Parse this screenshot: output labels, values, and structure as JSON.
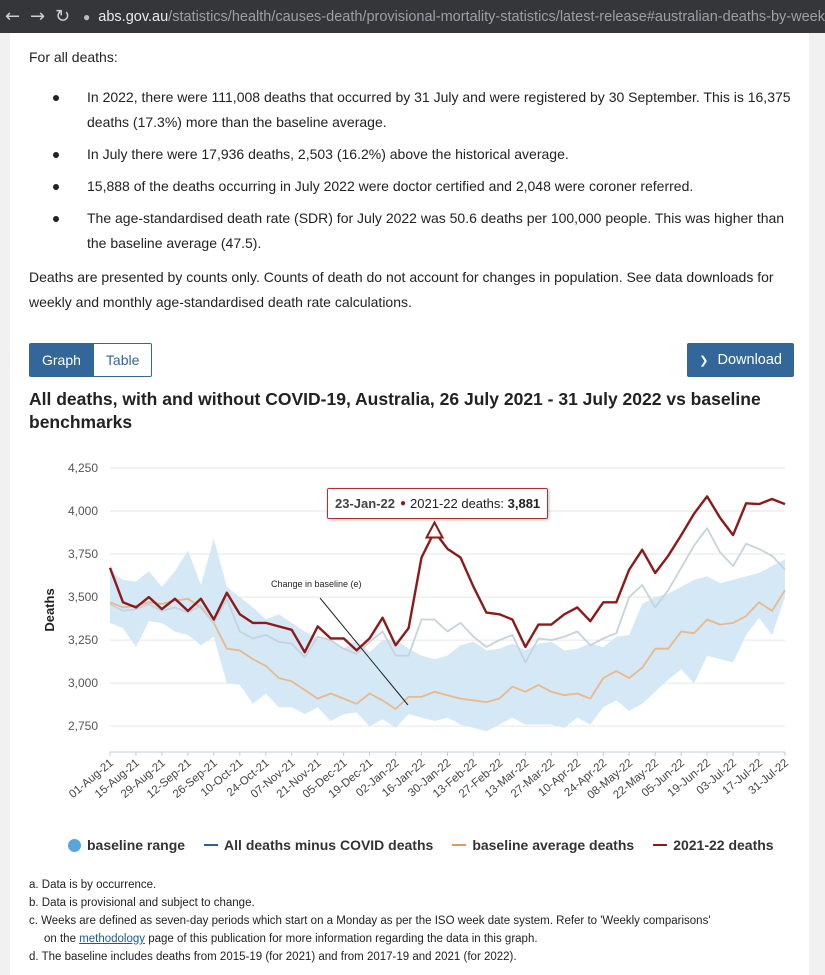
{
  "browser": {
    "host": "abs.gov.au",
    "path": "/statistics/health/causes-death/provisional-mortality-statistics/latest-release#australian-deaths-by-week"
  },
  "intro": "For all deaths:",
  "bullets": [
    "In 2022, there were 111,008 deaths that occurred by 31 July and were registered by 30 September. This is 16,375 deaths (17.3%) more than the baseline average.",
    "In July there were 17,936 deaths, 2,503 (16.2%) above the historical average.",
    "15,888 of the deaths occurring in July 2022 were doctor certified and 2,048 were coroner referred.",
    "The age-standardised death rate (SDR) for July 2022 was 50.6 deaths per 100,000 people. This was higher than the baseline average (47.5)."
  ],
  "note_paragraph": "Deaths are presented by counts only. Counts of death do not account for changes in population. See data downloads for weekly and monthly age-standardised death rate calculations.",
  "toggle": {
    "graph": "Graph",
    "table": "Table"
  },
  "download_label": "Download",
  "tooltip": {
    "date": "23-Jan-22",
    "series": "2021-22 deaths:",
    "value": "3,881"
  },
  "annotation": "Change in baseline (e)",
  "footnotes": {
    "a": "a. Data is by occurrence.",
    "b": "b. Data is provisional and subject to change.",
    "c_pre": "c. Weeks are defined as seven-day periods which start on a Monday as per the ISO week date system. Refer to 'Weekly comparisons' on the ",
    "c_link": "methodology",
    "c_post": " page of this publication for more information regarding the data in this graph.",
    "d": "d. The baseline includes deaths from 2015-19 (for 2021) and from 2017-19 and 2021 (for 2022)."
  },
  "colors": {
    "deaths": "#8b1a1a",
    "minus_covid": "#c5d3dd",
    "baseline_avg": "#e9b98a",
    "baseline_range": "#cfe6f5",
    "legend_minus_covid": "#2f5f8f",
    "legend_baseline_avg": "#e29a55",
    "accent": "#336699"
  },
  "chart_data": {
    "type": "line",
    "title": "All deaths, with and without COVID-19, Australia, 26 July 2021 - 31 July 2022 vs baseline benchmarks",
    "ylabel": "Deaths",
    "xlabel": "",
    "ylim": [
      2600,
      4250
    ],
    "yticks": [
      2750,
      3000,
      3250,
      3500,
      3750,
      4000,
      4250
    ],
    "ytick_labels": [
      "2,750",
      "3,000",
      "3,250",
      "3,500",
      "3,750",
      "4,000",
      "4,250"
    ],
    "x_tick_labels": [
      "01-Aug-21",
      "15-Aug-21",
      "29-Aug-21",
      "12-Sep-21",
      "26-Sep-21",
      "10-Oct-21",
      "24-Oct-21",
      "07-Nov-21",
      "21-Nov-21",
      "05-Dec-21",
      "19-Dec-21",
      "02-Jan-22",
      "16-Jan-22",
      "30-Jan-22",
      "13-Feb-22",
      "27-Feb-22",
      "13-Mar-22",
      "27-Mar-22",
      "10-Apr-22",
      "24-Apr-22",
      "08-May-22",
      "22-May-22",
      "05-Jun-22",
      "19-Jun-22",
      "03-Jul-22",
      "17-Jul-22",
      "31-Jul-22"
    ],
    "grid": true,
    "legend": "bottom",
    "legend_items": [
      "baseline range",
      "All deaths minus COVID deaths",
      "baseline average deaths",
      "2021-22 deaths"
    ],
    "series": [
      {
        "name": "2021-22 deaths",
        "values": [
          3670,
          3470,
          3440,
          3500,
          3430,
          3490,
          3420,
          3490,
          3370,
          3525,
          3400,
          3350,
          3350,
          3330,
          3310,
          3180,
          3330,
          3260,
          3260,
          3190,
          3260,
          3380,
          3220,
          3320,
          3730,
          3881,
          3780,
          3730,
          3560,
          3410,
          3400,
          3370,
          3210,
          3340,
          3340,
          3400,
          3440,
          3360,
          3470,
          3470,
          3660,
          3775,
          3640,
          3740,
          3860,
          3985,
          4085,
          3960,
          3860,
          4045,
          4040,
          4070,
          4040
        ]
      },
      {
        "name": "All deaths minus COVID deaths",
        "values": [
          3460,
          3420,
          3430,
          3460,
          3420,
          3440,
          3410,
          3450,
          3350,
          3490,
          3300,
          3260,
          3280,
          3240,
          3230,
          3150,
          3270,
          3250,
          3200,
          3170,
          3240,
          3300,
          3160,
          3160,
          3370,
          3370,
          3300,
          3350,
          3270,
          3210,
          3250,
          3280,
          3120,
          3260,
          3250,
          3270,
          3300,
          3220,
          3260,
          3290,
          3500,
          3570,
          3440,
          3540,
          3670,
          3800,
          3900,
          3760,
          3680,
          3810,
          3780,
          3740,
          3660
        ]
      },
      {
        "name": "baseline average deaths",
        "values": [
          3470,
          3440,
          3450,
          3470,
          3460,
          3480,
          3490,
          3440,
          3350,
          3200,
          3190,
          3140,
          3100,
          3030,
          3010,
          2960,
          2910,
          2940,
          2910,
          2880,
          2940,
          2900,
          2850,
          2920,
          2920,
          2950,
          2930,
          2910,
          2900,
          2890,
          2910,
          2980,
          2950,
          2990,
          2950,
          2930,
          2940,
          2910,
          3030,
          3070,
          3030,
          3090,
          3200,
          3200,
          3300,
          3290,
          3370,
          3340,
          3350,
          3390,
          3470,
          3420,
          3540
        ]
      },
      {
        "name": "baseline range upper",
        "values": [
          3650,
          3600,
          3590,
          3650,
          3560,
          3650,
          3770,
          3570,
          3840,
          3560,
          3500,
          3440,
          3370,
          3400,
          3350,
          3300,
          3260,
          3250,
          3200,
          3250,
          3180,
          3250,
          3250,
          3200,
          3160,
          3140,
          3160,
          3220,
          3240,
          3190,
          3200,
          3230,
          3190,
          3230,
          3240,
          3190,
          3200,
          3230,
          3210,
          3270,
          3280,
          3460,
          3500,
          3520,
          3560,
          3600,
          3620,
          3580,
          3600,
          3620,
          3640,
          3680,
          3720
        ]
      },
      {
        "name": "baseline range lower",
        "values": [
          3350,
          3320,
          3210,
          3360,
          3350,
          3300,
          3280,
          3220,
          3270,
          3000,
          2990,
          2880,
          2940,
          2860,
          2860,
          2820,
          2860,
          2780,
          2820,
          2830,
          2750,
          2790,
          2740,
          2820,
          2800,
          2780,
          2800,
          2760,
          2740,
          2720,
          2760,
          2800,
          2760,
          2760,
          2760,
          2740,
          2800,
          2760,
          2860,
          2900,
          2840,
          2880,
          2950,
          3020,
          3080,
          3000,
          3160,
          3140,
          3120,
          3280,
          3380,
          3280,
          3500
        ]
      }
    ]
  }
}
